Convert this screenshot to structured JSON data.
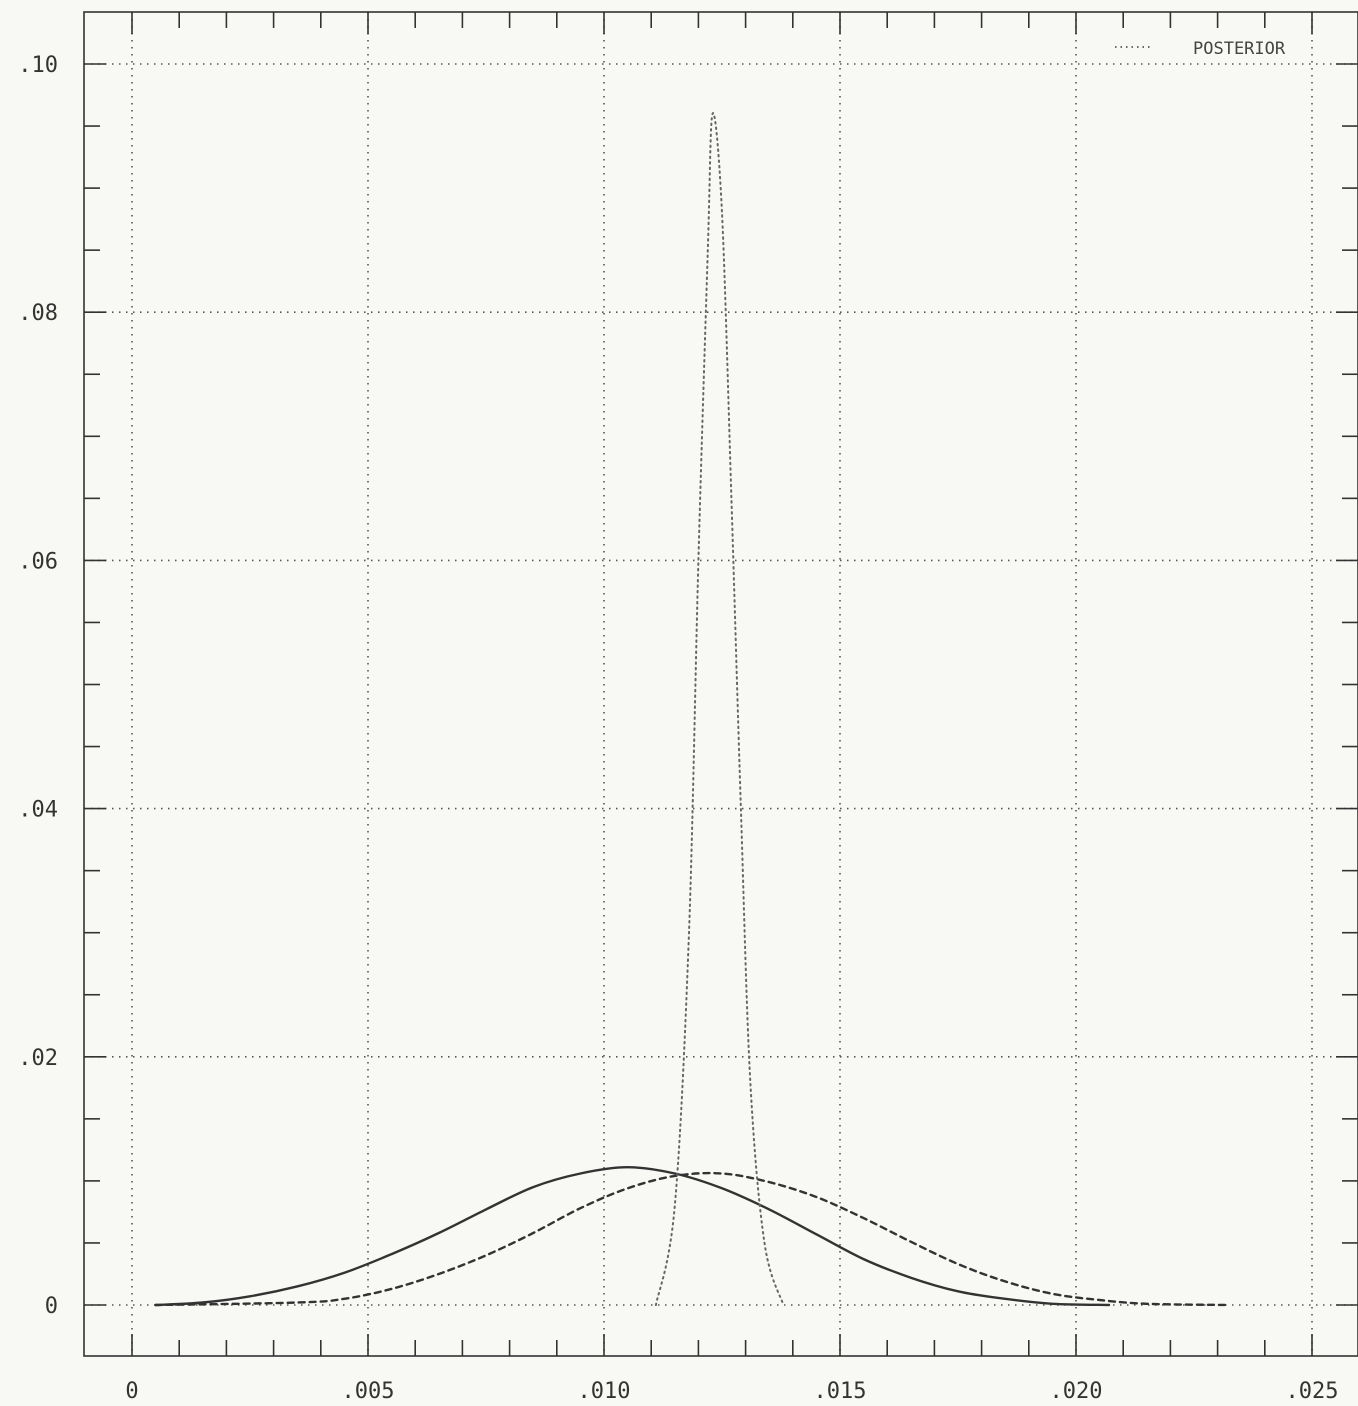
{
  "chart_data": {
    "type": "line",
    "title": "",
    "xlabel": "",
    "ylabel": "",
    "xlim": [
      0,
      0.025
    ],
    "ylim": [
      0,
      0.1
    ],
    "x_ticks": [
      {
        "value": 0,
        "label": "0"
      },
      {
        "value": 0.005,
        "label": ".005"
      },
      {
        "value": 0.01,
        "label": ".010"
      },
      {
        "value": 0.015,
        "label": ".015"
      },
      {
        "value": 0.02,
        "label": ".020"
      },
      {
        "value": 0.025,
        "label": ".025"
      }
    ],
    "y_ticks": [
      {
        "value": 0,
        "label": "0"
      },
      {
        "value": 0.02,
        "label": ".02"
      },
      {
        "value": 0.04,
        "label": ".04"
      },
      {
        "value": 0.06,
        "label": ".06"
      },
      {
        "value": 0.08,
        "label": ".08"
      },
      {
        "value": 0.1,
        "label": ".10"
      }
    ],
    "grid": true,
    "legend": {
      "placement": "top-right",
      "entries": [
        "POSTERIOR"
      ]
    },
    "series": [
      {
        "style": "solid",
        "color": "#333333",
        "points": [
          [
            0.0005,
            0.0
          ],
          [
            0.0015,
            0.0002
          ],
          [
            0.0025,
            0.0007
          ],
          [
            0.0035,
            0.0015
          ],
          [
            0.0045,
            0.0026
          ],
          [
            0.0055,
            0.0041
          ],
          [
            0.0065,
            0.0058
          ],
          [
            0.0075,
            0.0077
          ],
          [
            0.0085,
            0.0095
          ],
          [
            0.0095,
            0.0106
          ],
          [
            0.0105,
            0.0111
          ],
          [
            0.0115,
            0.0106
          ],
          [
            0.0125,
            0.0094
          ],
          [
            0.0135,
            0.0077
          ],
          [
            0.0145,
            0.0057
          ],
          [
            0.0155,
            0.0037
          ],
          [
            0.0165,
            0.0022
          ],
          [
            0.0175,
            0.0011
          ],
          [
            0.0185,
            0.0005
          ],
          [
            0.0195,
            0.0001
          ],
          [
            0.0207,
            0.0
          ]
        ]
      },
      {
        "style": "dashed",
        "color": "#333333",
        "points": [
          [
            0.0005,
            0.0
          ],
          [
            0.0035,
            0.0002
          ],
          [
            0.0045,
            0.0005
          ],
          [
            0.0055,
            0.0013
          ],
          [
            0.0065,
            0.0025
          ],
          [
            0.0075,
            0.004
          ],
          [
            0.0085,
            0.0058
          ],
          [
            0.0095,
            0.0078
          ],
          [
            0.0105,
            0.0094
          ],
          [
            0.0115,
            0.0104
          ],
          [
            0.0125,
            0.0106
          ],
          [
            0.0135,
            0.0099
          ],
          [
            0.0145,
            0.0087
          ],
          [
            0.0155,
            0.007
          ],
          [
            0.0165,
            0.0051
          ],
          [
            0.0175,
            0.0033
          ],
          [
            0.0185,
            0.0019
          ],
          [
            0.0195,
            0.0009
          ],
          [
            0.0205,
            0.0004
          ],
          [
            0.0215,
            0.0001
          ],
          [
            0.0232,
            0.0
          ]
        ]
      },
      {
        "name": "POSTERIOR",
        "style": "dotted",
        "color": "#666666",
        "points": [
          [
            0.0111,
            0.0
          ],
          [
            0.0115,
            0.008
          ],
          [
            0.0118,
            0.03
          ],
          [
            0.012,
            0.06
          ],
          [
            0.0122,
            0.085
          ],
          [
            0.0123,
            0.096
          ],
          [
            0.0125,
            0.088
          ],
          [
            0.0127,
            0.065
          ],
          [
            0.0129,
            0.04
          ],
          [
            0.0131,
            0.018
          ],
          [
            0.0134,
            0.005
          ],
          [
            0.0138,
            0.0
          ]
        ]
      }
    ]
  }
}
